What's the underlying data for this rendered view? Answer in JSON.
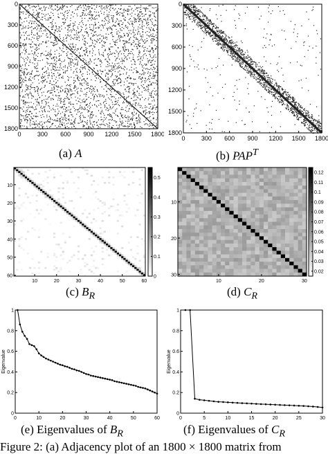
{
  "panels": [
    {
      "id": "a",
      "label": "(a)",
      "math": "A",
      "sup": "",
      "sub": ""
    },
    {
      "id": "b",
      "label": "(b)",
      "math": "PAP",
      "sup": "T",
      "sub": ""
    },
    {
      "id": "c",
      "label": "(c)",
      "math": "B",
      "sup": "",
      "sub": "R"
    },
    {
      "id": "d",
      "label": "(d)",
      "math": "C",
      "sup": "",
      "sub": "R"
    },
    {
      "id": "e",
      "label": "(e) Eigenvalues of",
      "math": "B",
      "sup": "",
      "sub": "R"
    },
    {
      "id": "f",
      "label": "(f) Eigenvalues of",
      "math": "C",
      "sup": "",
      "sub": "R"
    }
  ],
  "figure_caption": "Figure 2: (a) Adjacency plot of an 1800 × 1800 matrix from",
  "chart_data": [
    {
      "type": "heatmap",
      "title": "",
      "matrix_size": 1800,
      "structure": "scattered",
      "x_ticks": [
        "0",
        "300",
        "600",
        "900",
        "1200",
        "1500",
        "1800"
      ],
      "y_ticks": [
        "0",
        "300",
        "600",
        "900",
        "1200",
        "1500",
        "1800"
      ]
    },
    {
      "type": "heatmap",
      "title": "",
      "matrix_size": 1800,
      "structure": "block-diagonal",
      "x_ticks": [
        "0",
        "300",
        "600",
        "900",
        "1200",
        "1500",
        "1800"
      ],
      "y_ticks": [
        "0",
        "300",
        "600",
        "900",
        "1200",
        "1500",
        "1800"
      ]
    },
    {
      "type": "heatmap",
      "title": "",
      "matrix_size": 60,
      "x_ticks": [
        "10",
        "20",
        "30",
        "40",
        "50",
        "60"
      ],
      "y_ticks": [
        "10",
        "20",
        "30",
        "40",
        "50",
        "60"
      ],
      "colorbar_ticks": [
        "0",
        "0.1",
        "0.2",
        "0.3",
        "0.4",
        "0.5"
      ],
      "colorbar_range": [
        0,
        0.55
      ]
    },
    {
      "type": "heatmap",
      "title": "",
      "matrix_size": 30,
      "x_ticks": [
        "10",
        "20",
        "30"
      ],
      "y_ticks": [
        "10",
        "20",
        "30"
      ],
      "colorbar_ticks": [
        "0.02",
        "0.03",
        "0.04",
        "0.05",
        "0.06",
        "0.07",
        "0.08",
        "0.09",
        "0.1",
        "0.11",
        "0.12"
      ],
      "colorbar_range": [
        0.015,
        0.125
      ]
    },
    {
      "type": "line",
      "title": "",
      "xlabel": "",
      "ylabel": "Eigenvalue",
      "xlim": [
        0,
        60
      ],
      "ylim": [
        0,
        1
      ],
      "x_ticks": [
        "0",
        "10",
        "20",
        "30",
        "40",
        "50",
        "60"
      ],
      "y_ticks": [
        "0",
        "0.2",
        "0.4",
        "0.6",
        "0.8",
        "1"
      ],
      "x": [
        1,
        2,
        3,
        4,
        5,
        6,
        7,
        8,
        9,
        10,
        11,
        12,
        13,
        14,
        15,
        16,
        17,
        18,
        19,
        20,
        21,
        22,
        23,
        24,
        25,
        26,
        27,
        28,
        29,
        30,
        31,
        32,
        33,
        34,
        35,
        36,
        37,
        38,
        39,
        40,
        41,
        42,
        43,
        44,
        45,
        46,
        47,
        48,
        49,
        50,
        51,
        52,
        53,
        54,
        55,
        56,
        57,
        58,
        59,
        60
      ],
      "y": [
        1.0,
        0.86,
        0.79,
        0.75,
        0.72,
        0.67,
        0.66,
        0.65,
        0.62,
        0.58,
        0.56,
        0.545,
        0.53,
        0.52,
        0.51,
        0.5,
        0.49,
        0.48,
        0.47,
        0.465,
        0.455,
        0.45,
        0.44,
        0.43,
        0.425,
        0.415,
        0.41,
        0.4,
        0.39,
        0.38,
        0.375,
        0.365,
        0.36,
        0.355,
        0.35,
        0.345,
        0.34,
        0.335,
        0.33,
        0.325,
        0.32,
        0.31,
        0.305,
        0.3,
        0.295,
        0.29,
        0.285,
        0.28,
        0.275,
        0.27,
        0.265,
        0.255,
        0.25,
        0.245,
        0.24,
        0.23,
        0.22,
        0.21,
        0.2,
        0.19
      ]
    },
    {
      "type": "line",
      "title": "",
      "xlabel": "",
      "ylabel": "Eigenvalue",
      "xlim": [
        0,
        30
      ],
      "ylim": [
        0,
        1
      ],
      "x_ticks": [
        "0",
        "5",
        "10",
        "15",
        "20",
        "25",
        "30"
      ],
      "y_ticks": [
        "0",
        "0.2",
        "0.4",
        "0.6",
        "0.8",
        "1"
      ],
      "x": [
        1,
        2,
        3,
        4,
        5,
        6,
        7,
        8,
        9,
        10,
        11,
        12,
        13,
        14,
        15,
        16,
        17,
        18,
        19,
        20,
        21,
        22,
        23,
        24,
        25,
        26,
        27,
        28,
        29,
        30
      ],
      "y": [
        1.0,
        1.0,
        0.14,
        0.13,
        0.125,
        0.12,
        0.115,
        0.11,
        0.108,
        0.105,
        0.102,
        0.1,
        0.097,
        0.095,
        0.093,
        0.09,
        0.088,
        0.086,
        0.084,
        0.082,
        0.08,
        0.078,
        0.076,
        0.074,
        0.072,
        0.07,
        0.067,
        0.064,
        0.06,
        0.055
      ]
    }
  ]
}
